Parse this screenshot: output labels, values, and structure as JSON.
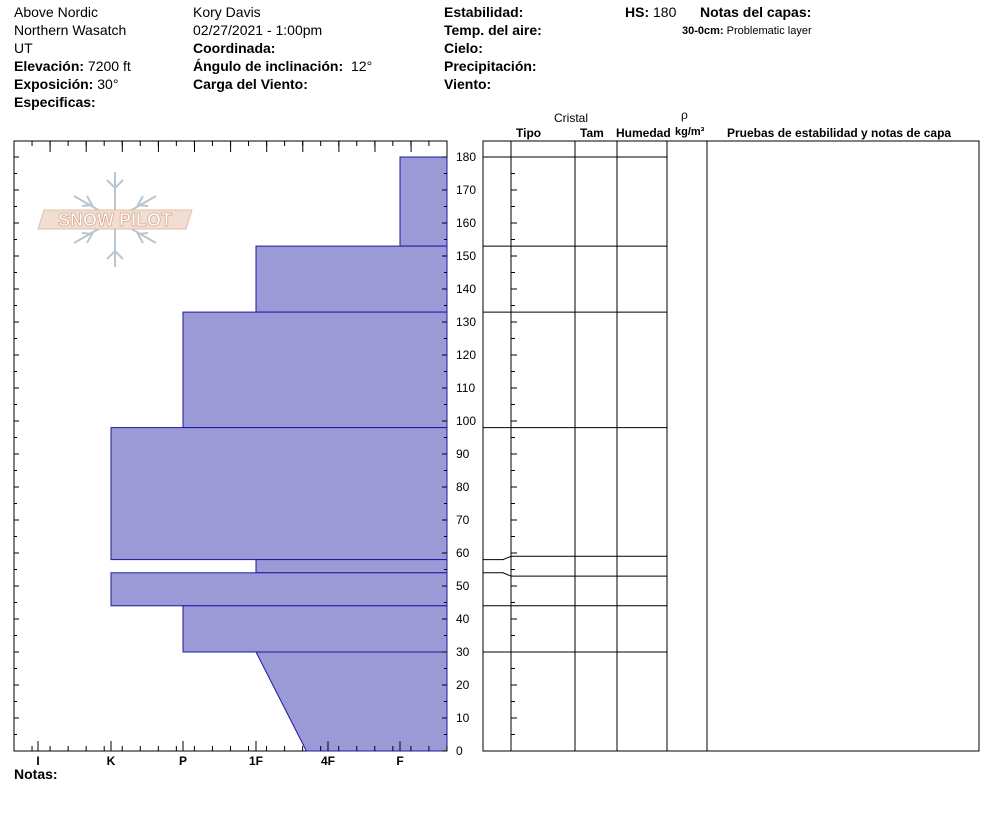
{
  "header": {
    "location": "Above Nordic",
    "range": "Northern Wasatch",
    "state": "UT",
    "elevation_label": "Elevación:",
    "elevation_value": "7200 ft",
    "aspect_label": "Exposición:",
    "aspect_value": "30°",
    "specifics_label": "Especificas:",
    "observer": "Kory Davis",
    "datetime": "02/27/2021 - 1:00pm",
    "coordinate_label": "Coordinada:",
    "slope_label": "Ángulo de inclinación:",
    "slope_value": "12°",
    "wind_loading_label": "Carga del Viento:",
    "stability_label": "Estabilidad:",
    "air_temp_label": "Temp. del aire:",
    "sky_label": "Cielo:",
    "precip_label": "Precipitación:",
    "wind_label": "Viento:",
    "hs_label": "HS:",
    "hs_value": "180",
    "layer_notes_label": "Notas del capas:",
    "layer_note_range": "30-0cm:",
    "layer_note_text": "Problematic layer"
  },
  "columns": {
    "crystal": "Cristal",
    "type": "Tipo",
    "size": "Tam",
    "moisture": "Humedad",
    "rho": "ρ",
    "density_unit": "kg/m³",
    "tests": "Pruebas de estabilidad y notas de capa"
  },
  "footer": {
    "notes_label": "Notas:"
  },
  "logo": {
    "text": "SNOW PILOT"
  },
  "colors": {
    "layer_fill": "#9b9ad6",
    "layer_stroke": "#1a1aa0"
  },
  "chart_data": {
    "type": "bar",
    "title": "",
    "xlabel": "",
    "ylabel": "",
    "ylim": [
      0,
      180
    ],
    "y_ticks": [
      0,
      10,
      20,
      30,
      40,
      50,
      60,
      70,
      80,
      90,
      100,
      110,
      120,
      130,
      140,
      150,
      160,
      170,
      180
    ],
    "hardness_categories": [
      "I",
      "K",
      "P",
      "1F",
      "4F",
      "F"
    ],
    "layers": [
      {
        "bottom": 153,
        "top": 180,
        "hardness": 6
      },
      {
        "bottom": 133,
        "top": 153,
        "hardness": 4
      },
      {
        "bottom": 98,
        "top": 133,
        "hardness": 3
      },
      {
        "bottom": 58,
        "top": 98,
        "hardness": 2
      },
      {
        "bottom": 54,
        "top": 58,
        "hardness": 4
      },
      {
        "bottom": 44,
        "top": 54,
        "hardness": 2
      },
      {
        "bottom": 30,
        "top": 44,
        "hardness": 3
      },
      {
        "bottom": 0,
        "top": 30,
        "hardness_top": 4,
        "hardness_bottom": 4.7
      }
    ],
    "layer_boundaries": [
      180,
      153,
      133,
      98,
      59,
      53,
      44,
      30,
      0
    ],
    "boundary_depths": [
      180,
      153,
      133,
      98,
      58,
      54,
      44,
      30,
      0
    ]
  }
}
